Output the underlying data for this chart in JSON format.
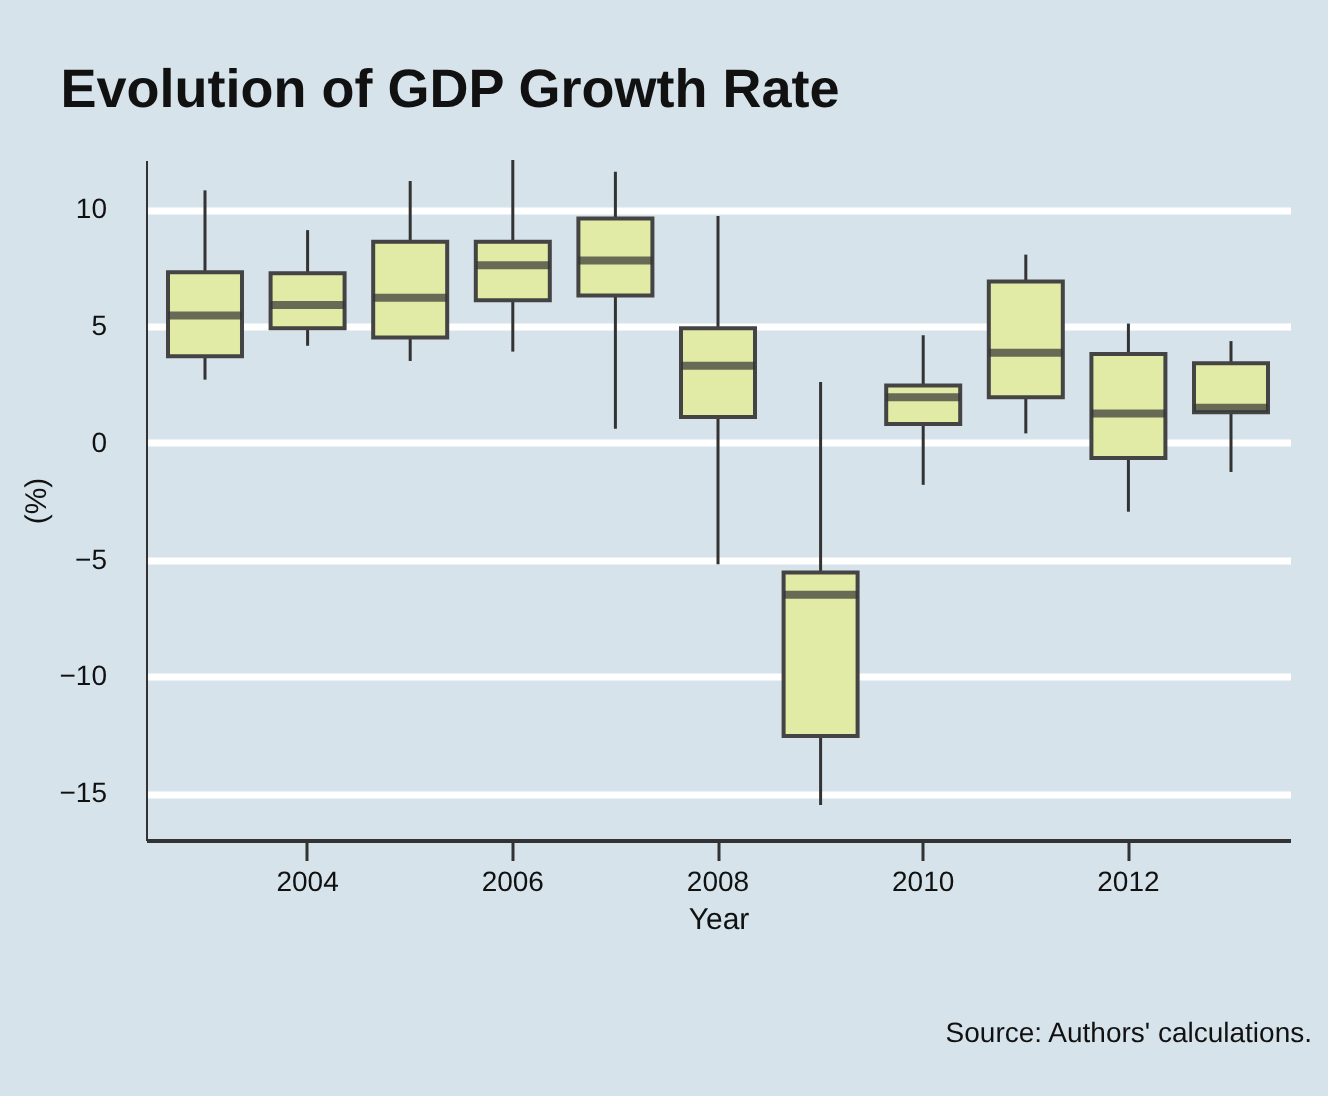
{
  "chart_data": {
    "type": "box",
    "title": "Evolution of GDP Growth Rate",
    "xlabel": "Year",
    "ylabel": "(%)",
    "categories": [
      null,
      "2004",
      null,
      "2006",
      null,
      "2008",
      null,
      "2010",
      null,
      "2012",
      null
    ],
    "ylim": [
      -17,
      12.1
    ],
    "yticks": [
      -15,
      -10,
      -5,
      0,
      5,
      10
    ],
    "grid": "y",
    "annotations": [
      "Source: Authors' calculations."
    ],
    "series": [
      {
        "color": "#e2eba5",
        "boxes": [
          {
            "low": 2.7,
            "q1": 3.7,
            "median": 5.45,
            "q3": 7.3,
            "high": 10.8
          },
          {
            "low": 4.15,
            "q1": 4.9,
            "median": 5.9,
            "q3": 7.25,
            "high": 9.1
          },
          {
            "low": 3.5,
            "q1": 4.5,
            "median": 6.2,
            "q3": 8.6,
            "high": 11.2
          },
          {
            "low": 3.9,
            "q1": 6.1,
            "median": 7.6,
            "q3": 8.6,
            "high": 12.1
          },
          {
            "low": 0.6,
            "q1": 6.3,
            "median": 7.8,
            "q3": 9.6,
            "high": 11.6
          },
          {
            "low": -5.2,
            "q1": 1.1,
            "median": 3.3,
            "q3": 4.9,
            "high": 9.7
          },
          {
            "low": -15.5,
            "q1": -12.55,
            "median": -6.5,
            "q3": -5.55,
            "high": 2.6
          },
          {
            "low": -1.8,
            "q1": 0.8,
            "median": 1.95,
            "q3": 2.45,
            "high": 4.6
          },
          {
            "low": 0.4,
            "q1": 1.95,
            "median": 3.85,
            "q3": 6.9,
            "high": 8.05
          },
          {
            "low": -2.95,
            "q1": -0.65,
            "median": 1.25,
            "q3": 3.8,
            "high": 5.1
          },
          {
            "low": -1.25,
            "q1": 1.3,
            "median": 1.5,
            "q3": 3.4,
            "high": 4.35
          }
        ]
      }
    ]
  }
}
